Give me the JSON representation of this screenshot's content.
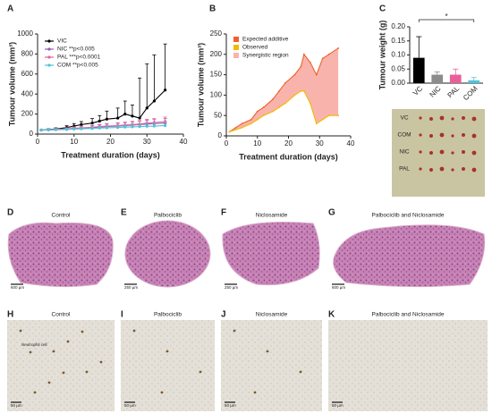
{
  "panel_labels": [
    "A",
    "B",
    "C",
    "D",
    "E",
    "F",
    "G",
    "H",
    "I",
    "J",
    "K"
  ],
  "chart_data": [
    {
      "type": "line",
      "xlabel": "Treatment duration (days)",
      "ylabel": "Tumour volume (mm³)",
      "x": [
        1,
        3,
        5,
        8,
        10,
        12,
        15,
        17,
        19,
        22,
        24,
        26,
        28,
        30,
        32,
        35
      ],
      "xlim": [
        0,
        40
      ],
      "xticks": [
        0,
        10,
        20,
        30,
        40
      ],
      "ylim": [
        0,
        1000
      ],
      "yticks": [
        0,
        200,
        400,
        600,
        800,
        1000
      ],
      "legend": "upper left",
      "series": [
        {
          "name": "VIC",
          "color": "#000000",
          "values": [
            40,
            45,
            50,
            65,
            80,
            95,
            110,
            130,
            150,
            160,
            200,
            180,
            160,
            260,
            330,
            440
          ],
          "errors": [
            5,
            8,
            12,
            18,
            25,
            30,
            45,
            55,
            80,
            100,
            130,
            110,
            400,
            440,
            460,
            460
          ]
        },
        {
          "name": "NIC **p<0.005",
          "color": "#9b59b6",
          "values": [
            40,
            42,
            45,
            50,
            55,
            60,
            65,
            70,
            75,
            80,
            85,
            90,
            95,
            100,
            105,
            110
          ],
          "errors": [
            5,
            8,
            10,
            12,
            15,
            18,
            20,
            22,
            25,
            28,
            30,
            32,
            35,
            38,
            40,
            45
          ]
        },
        {
          "name": "PAL ***p<0.0001",
          "color": "#e8609a",
          "values": [
            40,
            43,
            47,
            52,
            58,
            62,
            68,
            75,
            80,
            85,
            90,
            95,
            100,
            110,
            115,
            125
          ],
          "errors": [
            5,
            8,
            10,
            12,
            15,
            18,
            20,
            22,
            25,
            28,
            30,
            32,
            35,
            38,
            40,
            45
          ]
        },
        {
          "name": "COM **p<0.005",
          "color": "#4fc3d9",
          "values": [
            40,
            41,
            43,
            46,
            50,
            53,
            56,
            60,
            63,
            66,
            70,
            72,
            75,
            78,
            80,
            85
          ],
          "errors": [
            4,
            6,
            8,
            10,
            12,
            14,
            16,
            18,
            20,
            22,
            24,
            26,
            28,
            30,
            32,
            35
          ]
        }
      ]
    },
    {
      "type": "area",
      "xlabel": "Treatment duration (days)",
      "ylabel": "Tumour volume (mm³)",
      "x": [
        1,
        3,
        5,
        8,
        10,
        12,
        15,
        17,
        19,
        22,
        24,
        25,
        27,
        29,
        31,
        33,
        36
      ],
      "xlim": [
        0,
        40
      ],
      "xticks": [
        0,
        10,
        20,
        30,
        40
      ],
      "ylim": [
        0,
        250
      ],
      "yticks": [
        0,
        50,
        100,
        150,
        200,
        250
      ],
      "legend": "upper left",
      "series": [
        {
          "name": "Expected additive",
          "color": "#f0602e",
          "values": [
            10,
            20,
            30,
            40,
            60,
            70,
            90,
            110,
            130,
            150,
            170,
            200,
            180,
            150,
            190,
            200,
            215
          ]
        },
        {
          "name": "Observed",
          "color": "#f5b800",
          "values": [
            10,
            15,
            20,
            30,
            40,
            50,
            60,
            70,
            80,
            100,
            110,
            110,
            80,
            30,
            40,
            50,
            50
          ]
        }
      ],
      "fill": {
        "name": "Synergistic region",
        "color": "#f8b4ac"
      }
    },
    {
      "type": "bar",
      "ylabel": "Tumour weight (g)",
      "categories": [
        "VC",
        "NIC",
        "PAL",
        "COM"
      ],
      "values": [
        0.09,
        0.03,
        0.03,
        0.01
      ],
      "errors": [
        0.075,
        0.01,
        0.02,
        0.01
      ],
      "colors": [
        "#000000",
        "#8c8c8c",
        "#e8609a",
        "#4fc3d9"
      ],
      "ylim": [
        0,
        0.2
      ],
      "yticks": [
        {
          "value": 0,
          "label": "0.00"
        },
        {
          "value": 0.05,
          "label": "0.05"
        },
        {
          "value": 0.1,
          "label": "0.10"
        },
        {
          "value": 0.15,
          "label": "0.15"
        },
        {
          "value": 0.2,
          "label": "0.20"
        }
      ],
      "significance": {
        "label": "*",
        "from": 0,
        "to": 3
      }
    }
  ],
  "photo": {
    "labels": [
      "VC",
      "COM",
      "NIC",
      "PAL"
    ]
  },
  "histology": [
    {
      "title": "Control",
      "scale": "600 µm"
    },
    {
      "title": "Palbociclib",
      "scale": "250 µm"
    },
    {
      "title": "Niclosamide",
      "scale": "250 µm"
    },
    {
      "title": "Palbociclib and Niclosamide",
      "scale": "600 µm"
    }
  ],
  "ihc": [
    {
      "title": "Control",
      "scale": "50 µm",
      "annotation": "Neutrophil cell"
    },
    {
      "title": "Palbociclib",
      "scale": "50 µm"
    },
    {
      "title": "Niclosamide",
      "scale": "50 µm"
    },
    {
      "title": "Palbociclib and Niclosamide",
      "scale": "50 µm"
    }
  ]
}
